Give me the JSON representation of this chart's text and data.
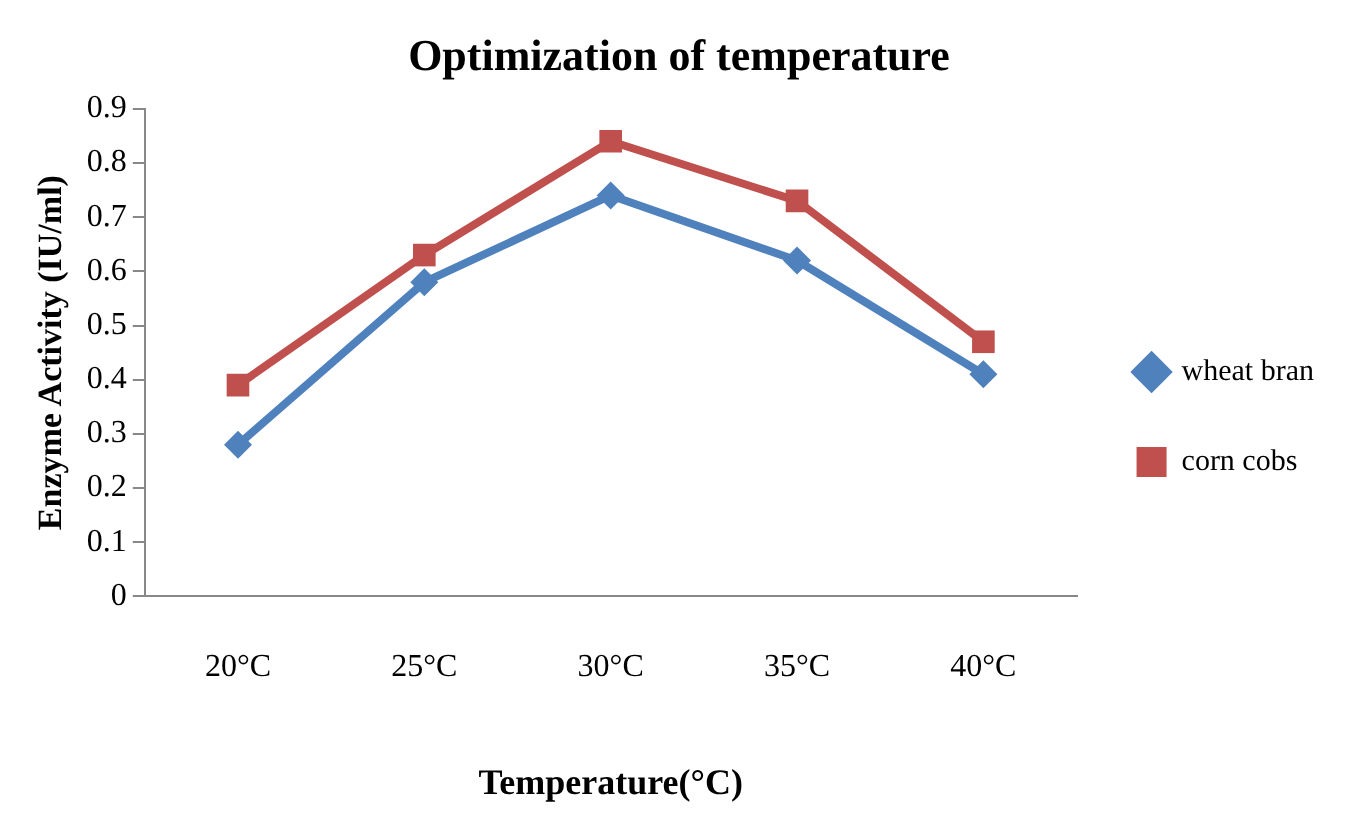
{
  "chart_data": {
    "type": "line",
    "title": "Optimization of temperature",
    "xlabel": "Temperature(°C)",
    "ylabel": "Enzyme Activity (IU/ml)",
    "categories": [
      "20°C",
      "25°C",
      "30°C",
      "35°C",
      "40°C"
    ],
    "series": [
      {
        "name": "wheat bran",
        "color": "#4f81bd",
        "marker": "diamond",
        "values": [
          0.28,
          0.58,
          0.74,
          0.62,
          0.41
        ]
      },
      {
        "name": "corn cobs",
        "color": "#c0504d",
        "marker": "square",
        "values": [
          0.39,
          0.63,
          0.84,
          0.73,
          0.47
        ]
      }
    ],
    "ylim": [
      0,
      0.9
    ],
    "yticks": [
      0,
      0.1,
      0.2,
      0.3,
      0.4,
      0.5,
      0.6,
      0.7,
      0.8,
      0.9
    ],
    "grid": false,
    "legend": "right"
  }
}
